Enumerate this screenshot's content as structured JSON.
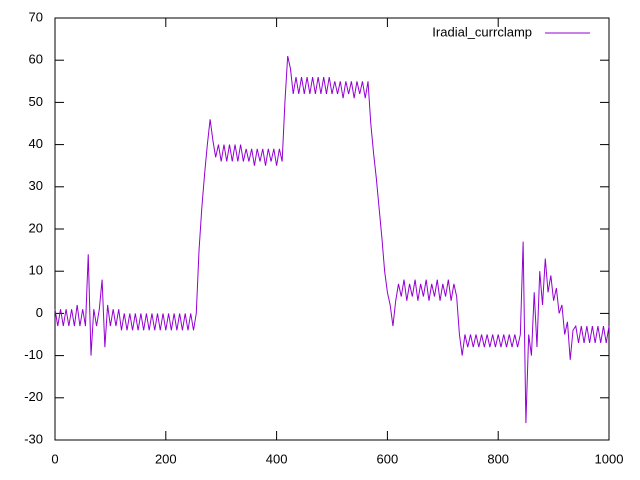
{
  "chart_data": {
    "type": "line",
    "xlim": [
      0,
      1000
    ],
    "ylim": [
      -30,
      70
    ],
    "xticks": [
      0,
      200,
      400,
      600,
      800,
      1000
    ],
    "yticks": [
      -30,
      -20,
      -10,
      0,
      10,
      20,
      30,
      40,
      50,
      60,
      70
    ],
    "legend": "top-right",
    "x": [
      0,
      5,
      10,
      15,
      20,
      25,
      30,
      35,
      40,
      45,
      50,
      55,
      60,
      65,
      70,
      75,
      80,
      85,
      90,
      95,
      100,
      105,
      110,
      115,
      120,
      125,
      130,
      135,
      140,
      145,
      150,
      155,
      160,
      165,
      170,
      175,
      180,
      185,
      190,
      195,
      200,
      205,
      210,
      215,
      220,
      225,
      230,
      235,
      240,
      245,
      250,
      255,
      260,
      265,
      270,
      275,
      280,
      285,
      290,
      295,
      300,
      305,
      310,
      315,
      320,
      325,
      330,
      335,
      340,
      345,
      350,
      355,
      360,
      365,
      370,
      375,
      380,
      385,
      390,
      395,
      400,
      405,
      410,
      415,
      420,
      425,
      430,
      435,
      440,
      445,
      450,
      455,
      460,
      465,
      470,
      475,
      480,
      485,
      490,
      495,
      500,
      505,
      510,
      515,
      520,
      525,
      530,
      535,
      540,
      545,
      550,
      555,
      560,
      565,
      570,
      575,
      580,
      585,
      590,
      595,
      600,
      605,
      610,
      615,
      620,
      625,
      630,
      635,
      640,
      645,
      650,
      655,
      660,
      665,
      670,
      675,
      680,
      685,
      690,
      695,
      700,
      705,
      710,
      715,
      720,
      725,
      730,
      735,
      740,
      745,
      750,
      755,
      760,
      765,
      770,
      775,
      780,
      785,
      790,
      795,
      800,
      805,
      810,
      815,
      820,
      825,
      830,
      835,
      840,
      845,
      850,
      855,
      860,
      865,
      870,
      875,
      880,
      885,
      890,
      895,
      900,
      905,
      910,
      915,
      920,
      925,
      930,
      935,
      940,
      945,
      950,
      955,
      960,
      965,
      970,
      975,
      980,
      985,
      990,
      995,
      1000
    ],
    "series": [
      {
        "name": "Iradial_currclamp",
        "color": "#9400d3",
        "values": [
          1,
          -3,
          1,
          -3,
          1,
          -3,
          1,
          -3,
          2,
          -3,
          1,
          -3,
          14,
          -10,
          1,
          -3,
          1,
          8,
          -8,
          2,
          -3,
          1,
          -3,
          1,
          -4,
          0,
          -4,
          0,
          -4,
          0,
          -4,
          0,
          -4,
          0,
          -4,
          0,
          -4,
          0,
          -4,
          0,
          -4,
          0,
          -4,
          0,
          -4,
          0,
          -4,
          0,
          -4,
          0,
          -4,
          0,
          15,
          25,
          33,
          40,
          46,
          41,
          37,
          40,
          36,
          40,
          36,
          40,
          36,
          40,
          36,
          40,
          36,
          39,
          36,
          39,
          35,
          39,
          36,
          39,
          35,
          39,
          36,
          39,
          35,
          39,
          36,
          50,
          61,
          58,
          52,
          56,
          52,
          56,
          52,
          56,
          52,
          56,
          52,
          56,
          52,
          56,
          52,
          56,
          52,
          55,
          52,
          55,
          51,
          55,
          52,
          55,
          51,
          55,
          52,
          55,
          51,
          55,
          45,
          38,
          32,
          25,
          18,
          10,
          5,
          2,
          -3,
          3,
          7,
          4,
          8,
          3,
          7,
          4,
          8,
          3,
          7,
          4,
          8,
          3,
          7,
          4,
          8,
          3,
          7,
          4,
          8,
          3,
          7,
          4,
          -5,
          -10,
          -5,
          -8,
          -5,
          -8,
          -5,
          -8,
          -5,
          -8,
          -5,
          -8,
          -5,
          -8,
          -5,
          -8,
          -5,
          -8,
          -5,
          -8,
          -5,
          -8,
          -5,
          17,
          -26,
          -5,
          -10,
          5,
          -8,
          10,
          2,
          13,
          5,
          9,
          3,
          6,
          0,
          2,
          -5,
          -2,
          -11,
          -4,
          -3,
          -7,
          -3,
          -7,
          -3,
          -7,
          -3,
          -7,
          -3,
          -7,
          -3,
          -7,
          -3
        ]
      }
    ]
  }
}
